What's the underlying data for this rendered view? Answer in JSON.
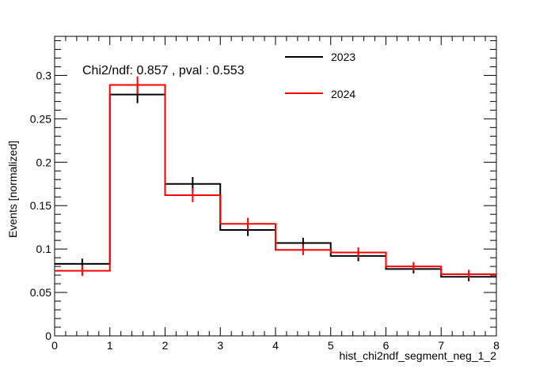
{
  "chart_data": {
    "type": "histogram",
    "xlabel": "hist_chi2ndf_segment_neg_1_2",
    "ylabel": "Events [normalized]",
    "annotation": "Chi2/ndf: 0.857 , pval : 0.553",
    "xlim": [
      0,
      8
    ],
    "ylim": [
      0,
      0.345
    ],
    "x_ticks": [
      "0",
      "1",
      "2",
      "3",
      "4",
      "5",
      "6",
      "7",
      "8"
    ],
    "y_ticks": [
      "0",
      "0.05",
      "0.1",
      "0.15",
      "0.2",
      "0.25",
      "0.3"
    ],
    "legend_position": "top-right",
    "bin_edges": [
      0,
      1,
      2,
      3,
      4,
      5,
      6,
      7,
      8
    ],
    "series": [
      {
        "name": "2023",
        "color": "#000000",
        "values": [
          0.083,
          0.278,
          0.175,
          0.122,
          0.107,
          0.092,
          0.077,
          0.068
        ],
        "errors": [
          0.006,
          0.01,
          0.008,
          0.007,
          0.006,
          0.006,
          0.005,
          0.005
        ]
      },
      {
        "name": "2024",
        "color": "#ff0000",
        "values": [
          0.075,
          0.289,
          0.162,
          0.129,
          0.099,
          0.096,
          0.08,
          0.071
        ],
        "errors": [
          0.006,
          0.01,
          0.008,
          0.007,
          0.006,
          0.006,
          0.005,
          0.005
        ]
      }
    ]
  }
}
